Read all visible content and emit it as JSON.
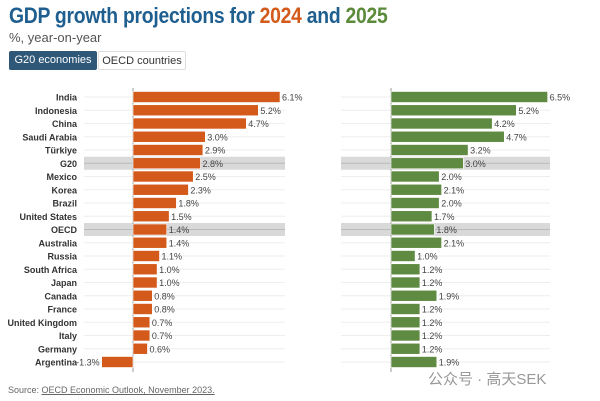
{
  "title": {
    "prefix": "GDP growth projections for ",
    "year1": "2024",
    "middle": " and ",
    "year2": "2025"
  },
  "subtitle": "%, year-on-year",
  "tabs": [
    {
      "label": "G20 economies",
      "active": true
    },
    {
      "label": "OECD countries",
      "active": false
    }
  ],
  "colors": {
    "2024": "#d35a1a",
    "2025": "#5f8a42",
    "highlight_band": "#d9d9d9",
    "title": "#1f5f8f"
  },
  "chart_data": {
    "type": "bar",
    "orientation": "horizontal",
    "categories": [
      "India",
      "Indonesia",
      "China",
      "Saudi Arabia",
      "Türkiye",
      "G20",
      "Mexico",
      "Korea",
      "Brazil",
      "United States",
      "OECD",
      "Australia",
      "Russia",
      "South Africa",
      "Japan",
      "Canada",
      "France",
      "United Kingdom",
      "Italy",
      "Germany",
      "Argentina"
    ],
    "highlighted": [
      "G20",
      "OECD"
    ],
    "series": [
      {
        "name": "2024",
        "values": [
          6.1,
          5.2,
          4.7,
          3.0,
          2.9,
          2.8,
          2.5,
          2.3,
          1.8,
          1.5,
          1.4,
          1.4,
          1.1,
          1.0,
          1.0,
          0.8,
          0.8,
          0.7,
          0.7,
          0.6,
          -1.3
        ]
      },
      {
        "name": "2025",
        "values": [
          6.5,
          5.2,
          4.2,
          4.7,
          3.2,
          3.0,
          2.0,
          2.1,
          2.0,
          1.7,
          1.8,
          2.1,
          1.0,
          1.2,
          1.2,
          1.9,
          1.2,
          1.2,
          1.2,
          1.2,
          1.9
        ]
      }
    ],
    "value_suffix": "%",
    "grid": true
  },
  "source": {
    "label": "Source: ",
    "link": "OECD Economic Outlook, November 2023."
  },
  "watermark": "公众号 · 高天SEK"
}
